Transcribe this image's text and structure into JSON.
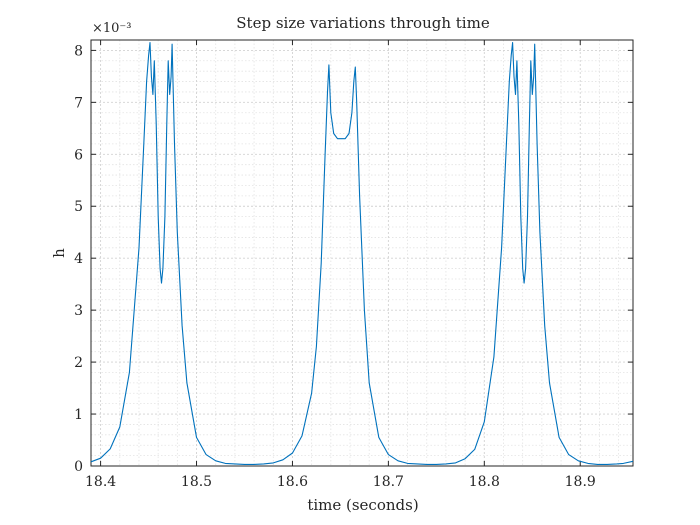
{
  "chart_data": {
    "type": "line",
    "title": "Step size variations through time",
    "xlabel": "time (seconds)",
    "ylabel": "h",
    "y_exponent_label": "×10⁻³",
    "xlim": [
      18.39,
      18.955
    ],
    "ylim": [
      0,
      0.0082
    ],
    "x_ticks": [
      18.4,
      18.5,
      18.6,
      18.7,
      18.8,
      18.9
    ],
    "x_tick_labels": [
      "18.4",
      "18.5",
      "18.6",
      "18.7",
      "18.8",
      "18.9"
    ],
    "y_ticks": [
      0,
      0.001,
      0.002,
      0.003,
      0.004,
      0.005,
      0.006,
      0.007,
      0.008
    ],
    "y_tick_labels": [
      "0",
      "1",
      "2",
      "3",
      "4",
      "5",
      "6",
      "7",
      "8"
    ],
    "grid": true,
    "minor_grid": true,
    "line_color": "#0072BD",
    "series": [
      {
        "x": [
          18.39,
          18.4,
          18.41,
          18.42,
          18.43,
          18.44,
          18.445,
          18.448,
          18.45,
          18.4515,
          18.453,
          18.4545,
          18.456,
          18.458,
          18.46,
          18.462,
          18.4635,
          18.465,
          18.467,
          18.469,
          18.4705,
          18.472,
          18.4735,
          18.4745,
          18.4755,
          18.477,
          18.48,
          18.485,
          18.49,
          18.5,
          18.51,
          18.52,
          18.53,
          18.54,
          18.55,
          18.56,
          18.57,
          18.58,
          18.59,
          18.6,
          18.61,
          18.62,
          18.625,
          18.63,
          18.634,
          18.6365,
          18.638,
          18.64,
          18.643,
          18.647,
          18.651,
          18.655,
          18.659,
          18.662,
          18.664,
          18.6655,
          18.667,
          18.67,
          18.675,
          18.68,
          18.69,
          18.7,
          18.71,
          18.72,
          18.73,
          18.74,
          18.75,
          18.76,
          18.77,
          18.78,
          18.79,
          18.8,
          18.81,
          18.818,
          18.823,
          18.826,
          18.828,
          18.8295,
          18.831,
          18.8325,
          18.834,
          18.836,
          18.838,
          18.84,
          18.8415,
          18.843,
          18.845,
          18.847,
          18.8485,
          18.85,
          18.8515,
          18.8525,
          18.8535,
          18.855,
          18.858,
          18.863,
          18.868,
          18.878,
          18.888,
          18.898,
          18.908,
          18.918,
          18.928,
          18.938,
          18.945,
          18.955
        ],
        "y": [
          8e-05,
          0.00015,
          0.00033,
          0.00075,
          0.0018,
          0.0042,
          0.0062,
          0.0074,
          0.0079,
          0.00815,
          0.0075,
          0.00715,
          0.0078,
          0.0066,
          0.0048,
          0.0038,
          0.00352,
          0.0038,
          0.0048,
          0.0066,
          0.0078,
          0.00715,
          0.0075,
          0.00812,
          0.0074,
          0.0062,
          0.0045,
          0.0027,
          0.0016,
          0.00055,
          0.00022,
          0.0001,
          5e-05,
          4e-05,
          3e-05,
          3e-05,
          4e-05,
          6e-05,
          0.00012,
          0.00025,
          0.00058,
          0.0014,
          0.0023,
          0.0039,
          0.006,
          0.0072,
          0.00772,
          0.0068,
          0.0064,
          0.0063,
          0.0063,
          0.0063,
          0.0064,
          0.0068,
          0.0074,
          0.00768,
          0.007,
          0.0052,
          0.003,
          0.0016,
          0.00055,
          0.00022,
          0.0001,
          5e-05,
          4e-05,
          3e-05,
          3e-05,
          4e-05,
          6e-05,
          0.00014,
          0.00032,
          0.00085,
          0.0021,
          0.0042,
          0.0062,
          0.0074,
          0.0079,
          0.00815,
          0.0075,
          0.00715,
          0.0078,
          0.0066,
          0.0048,
          0.0038,
          0.00352,
          0.0038,
          0.0048,
          0.0066,
          0.0078,
          0.00715,
          0.0075,
          0.00812,
          0.0074,
          0.0062,
          0.0045,
          0.0027,
          0.0016,
          0.00055,
          0.00022,
          0.0001,
          5e-05,
          3e-05,
          3e-05,
          4e-05,
          5e-05,
          9e-05
        ]
      }
    ]
  }
}
